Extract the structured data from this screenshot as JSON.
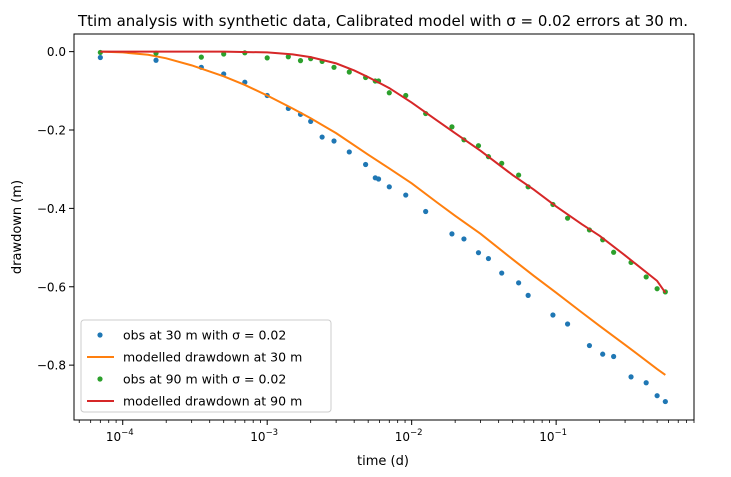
{
  "chart_data": {
    "type": "scatter",
    "title": "Ttim analysis with synthetic data, Calibrated model with σ = 0.02 errors at 30 m.",
    "xlabel": "time (d)",
    "ylabel": "drawdown (m)",
    "xscale": "log",
    "xlim": [
      4.6e-05,
      0.9
    ],
    "ylim": [
      -0.94,
      0.045
    ],
    "x_ticks": [
      {
        "value": 0.0001,
        "base": "10",
        "exp": "−4"
      },
      {
        "value": 0.001,
        "base": "10",
        "exp": "−3"
      },
      {
        "value": 0.01,
        "base": "10",
        "exp": "−2"
      },
      {
        "value": 0.1,
        "base": "10",
        "exp": "−1"
      }
    ],
    "y_ticks": [
      {
        "value": 0.0,
        "label": "0.0"
      },
      {
        "value": -0.2,
        "label": "−0.2"
      },
      {
        "value": -0.4,
        "label": "−0.4"
      },
      {
        "value": -0.6,
        "label": "−0.6"
      },
      {
        "value": -0.8,
        "label": "−0.8"
      }
    ],
    "grid": false,
    "legend_position": "lower-left",
    "series": [
      {
        "name": "obs at 30 m with σ = 0.02",
        "kind": "points",
        "color": "#1f77b4",
        "x": [
          7e-05,
          0.00017,
          0.00035,
          0.0005,
          0.0007,
          0.001,
          0.0014,
          0.0017,
          0.002,
          0.0024,
          0.0029,
          0.0037,
          0.0048,
          0.0056,
          0.0059,
          0.007,
          0.0091,
          0.0125,
          0.019,
          0.023,
          0.029,
          0.034,
          0.042,
          0.055,
          0.064,
          0.095,
          0.12,
          0.17,
          0.21,
          0.25,
          0.33,
          0.42,
          0.5,
          0.57
        ],
        "y": [
          -0.015,
          -0.022,
          -0.04,
          -0.057,
          -0.078,
          -0.112,
          -0.145,
          -0.16,
          -0.178,
          -0.218,
          -0.228,
          -0.256,
          -0.288,
          -0.322,
          -0.325,
          -0.345,
          -0.366,
          -0.408,
          -0.465,
          -0.478,
          -0.513,
          -0.528,
          -0.565,
          -0.59,
          -0.622,
          -0.672,
          -0.695,
          -0.75,
          -0.772,
          -0.778,
          -0.83,
          -0.845,
          -0.878,
          -0.893
        ]
      },
      {
        "name": "modelled drawdown at 30 m",
        "kind": "line",
        "color": "#ff7f0e",
        "x": [
          7e-05,
          0.0001,
          0.00015,
          0.0002,
          0.0003,
          0.0005,
          0.0007,
          0.001,
          0.0015,
          0.002,
          0.003,
          0.005,
          0.007,
          0.01,
          0.015,
          0.02,
          0.03,
          0.05,
          0.07,
          0.1,
          0.15,
          0.2,
          0.3,
          0.5,
          0.57
        ],
        "y": [
          0.0,
          -0.002,
          -0.008,
          -0.017,
          -0.035,
          -0.063,
          -0.085,
          -0.112,
          -0.145,
          -0.17,
          -0.208,
          -0.263,
          -0.298,
          -0.336,
          -0.385,
          -0.419,
          -0.465,
          -0.53,
          -0.572,
          -0.615,
          -0.665,
          -0.7,
          -0.748,
          -0.81,
          -0.825
        ]
      },
      {
        "name": "obs at 90 m with σ = 0.02",
        "kind": "points",
        "color": "#2ca02c",
        "x": [
          7e-05,
          0.00017,
          0.00035,
          0.0005,
          0.0007,
          0.001,
          0.0014,
          0.0017,
          0.002,
          0.0024,
          0.0029,
          0.0037,
          0.0048,
          0.0056,
          0.0059,
          0.007,
          0.0091,
          0.0125,
          0.019,
          0.023,
          0.029,
          0.034,
          0.042,
          0.055,
          0.064,
          0.095,
          0.12,
          0.17,
          0.21,
          0.25,
          0.33,
          0.42,
          0.5,
          0.57
        ],
        "y": [
          -0.002,
          -0.004,
          -0.014,
          -0.006,
          -0.003,
          -0.016,
          -0.013,
          -0.023,
          -0.018,
          -0.025,
          -0.04,
          -0.052,
          -0.066,
          -0.075,
          -0.075,
          -0.105,
          -0.112,
          -0.158,
          -0.192,
          -0.225,
          -0.24,
          -0.268,
          -0.285,
          -0.315,
          -0.345,
          -0.39,
          -0.425,
          -0.455,
          -0.48,
          -0.512,
          -0.538,
          -0.575,
          -0.605,
          -0.613
        ]
      },
      {
        "name": "modelled drawdown at 90 m",
        "kind": "line",
        "color": "#d62728",
        "x": [
          7e-05,
          0.0005,
          0.001,
          0.0015,
          0.002,
          0.003,
          0.004,
          0.005,
          0.007,
          0.01,
          0.015,
          0.02,
          0.03,
          0.05,
          0.07,
          0.1,
          0.15,
          0.2,
          0.3,
          0.5,
          0.57
        ],
        "y": [
          0.0,
          0.0,
          -0.002,
          -0.007,
          -0.014,
          -0.03,
          -0.048,
          -0.065,
          -0.093,
          -0.13,
          -0.176,
          -0.208,
          -0.253,
          -0.315,
          -0.352,
          -0.395,
          -0.44,
          -0.47,
          -0.52,
          -0.585,
          -0.615
        ]
      }
    ]
  }
}
